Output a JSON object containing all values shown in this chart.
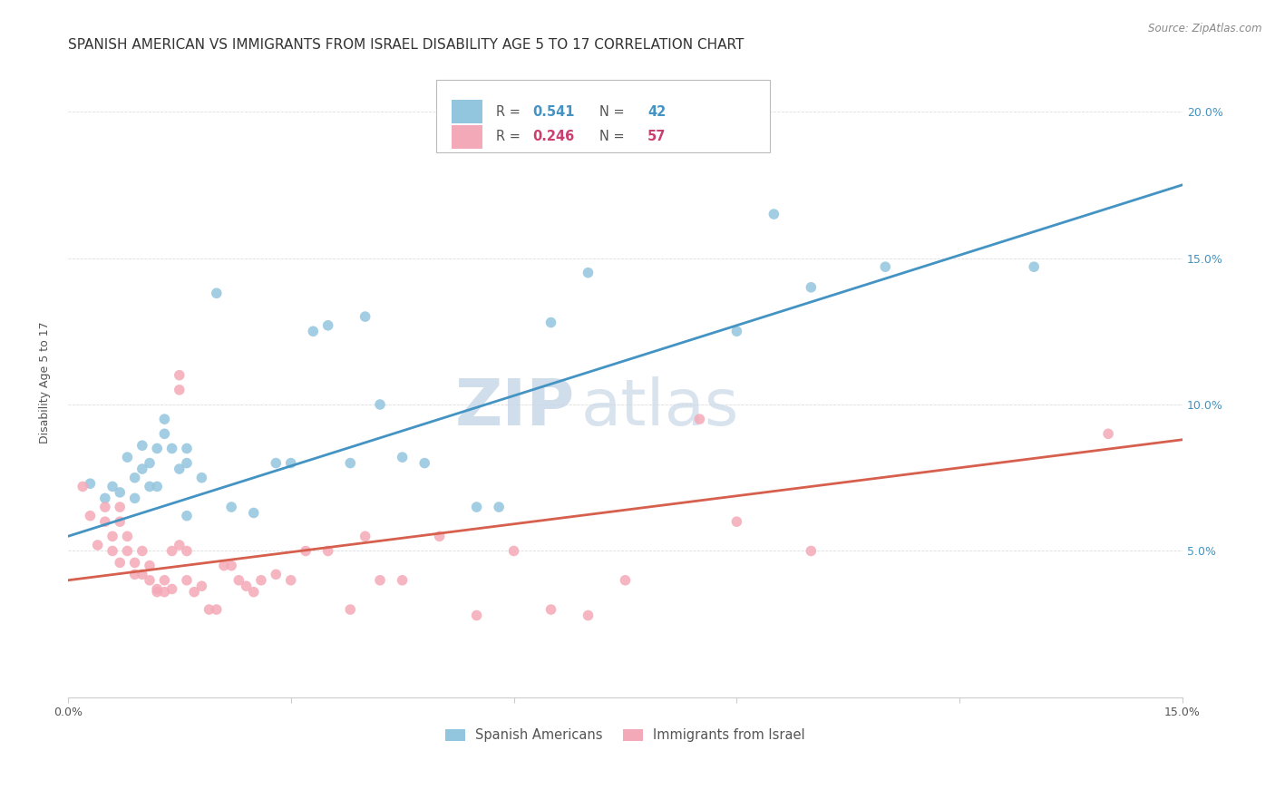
{
  "title": "SPANISH AMERICAN VS IMMIGRANTS FROM ISRAEL DISABILITY AGE 5 TO 17 CORRELATION CHART",
  "source": "Source: ZipAtlas.com",
  "ylabel": "Disability Age 5 to 17",
  "xlabel": "",
  "xlim": [
    0.0,
    0.15
  ],
  "ylim": [
    0.0,
    0.215
  ],
  "xticks": [
    0.0,
    0.03,
    0.06,
    0.09,
    0.12,
    0.15
  ],
  "xticklabels": [
    "0.0%",
    "",
    "",
    "",
    "",
    "15.0%"
  ],
  "yticks": [
    0.0,
    0.05,
    0.1,
    0.15,
    0.2
  ],
  "yticklabels_right": [
    "",
    "5.0%",
    "10.0%",
    "15.0%",
    "20.0%"
  ],
  "blue_R": 0.541,
  "blue_N": 42,
  "pink_R": 0.246,
  "pink_N": 57,
  "blue_color": "#92c5de",
  "pink_color": "#f4a9b8",
  "blue_line_color": "#4393c3",
  "pink_line_color": "#d6604d",
  "watermark_zip": "ZIP",
  "watermark_atlas": "atlas",
  "blue_scatter_x": [
    0.003,
    0.005,
    0.006,
    0.007,
    0.008,
    0.009,
    0.009,
    0.01,
    0.01,
    0.011,
    0.011,
    0.012,
    0.012,
    0.013,
    0.013,
    0.014,
    0.015,
    0.016,
    0.016,
    0.016,
    0.018,
    0.02,
    0.022,
    0.025,
    0.028,
    0.03,
    0.033,
    0.035,
    0.038,
    0.04,
    0.042,
    0.045,
    0.048,
    0.055,
    0.058,
    0.065,
    0.07,
    0.09,
    0.095,
    0.1,
    0.11,
    0.13
  ],
  "blue_scatter_y": [
    0.073,
    0.068,
    0.072,
    0.07,
    0.082,
    0.075,
    0.068,
    0.078,
    0.086,
    0.072,
    0.08,
    0.085,
    0.072,
    0.09,
    0.095,
    0.085,
    0.078,
    0.085,
    0.08,
    0.062,
    0.075,
    0.138,
    0.065,
    0.063,
    0.08,
    0.08,
    0.125,
    0.127,
    0.08,
    0.13,
    0.1,
    0.082,
    0.08,
    0.065,
    0.065,
    0.128,
    0.145,
    0.125,
    0.165,
    0.14,
    0.147,
    0.147
  ],
  "pink_scatter_x": [
    0.002,
    0.003,
    0.004,
    0.005,
    0.005,
    0.006,
    0.006,
    0.007,
    0.007,
    0.007,
    0.008,
    0.008,
    0.009,
    0.009,
    0.01,
    0.01,
    0.011,
    0.011,
    0.012,
    0.012,
    0.013,
    0.013,
    0.014,
    0.014,
    0.015,
    0.015,
    0.015,
    0.016,
    0.016,
    0.017,
    0.018,
    0.019,
    0.02,
    0.021,
    0.022,
    0.023,
    0.024,
    0.025,
    0.026,
    0.028,
    0.03,
    0.032,
    0.035,
    0.038,
    0.04,
    0.042,
    0.045,
    0.05,
    0.055,
    0.06,
    0.065,
    0.07,
    0.075,
    0.085,
    0.09,
    0.1,
    0.14
  ],
  "pink_scatter_y": [
    0.072,
    0.062,
    0.052,
    0.06,
    0.065,
    0.05,
    0.055,
    0.046,
    0.06,
    0.065,
    0.05,
    0.055,
    0.042,
    0.046,
    0.042,
    0.05,
    0.04,
    0.045,
    0.037,
    0.036,
    0.036,
    0.04,
    0.05,
    0.037,
    0.105,
    0.11,
    0.052,
    0.04,
    0.05,
    0.036,
    0.038,
    0.03,
    0.03,
    0.045,
    0.045,
    0.04,
    0.038,
    0.036,
    0.04,
    0.042,
    0.04,
    0.05,
    0.05,
    0.03,
    0.055,
    0.04,
    0.04,
    0.055,
    0.028,
    0.05,
    0.03,
    0.028,
    0.04,
    0.095,
    0.06,
    0.05,
    0.09
  ],
  "blue_line_x": [
    0.0,
    0.15
  ],
  "blue_line_y": [
    0.055,
    0.175
  ],
  "pink_line_x": [
    0.0,
    0.15
  ],
  "pink_line_y": [
    0.04,
    0.088
  ],
  "legend_label_blue": "Spanish Americans",
  "legend_label_pink": "Immigrants from Israel",
  "title_fontsize": 11,
  "axis_fontsize": 9,
  "tick_fontsize": 9,
  "legend_fontsize": 10
}
